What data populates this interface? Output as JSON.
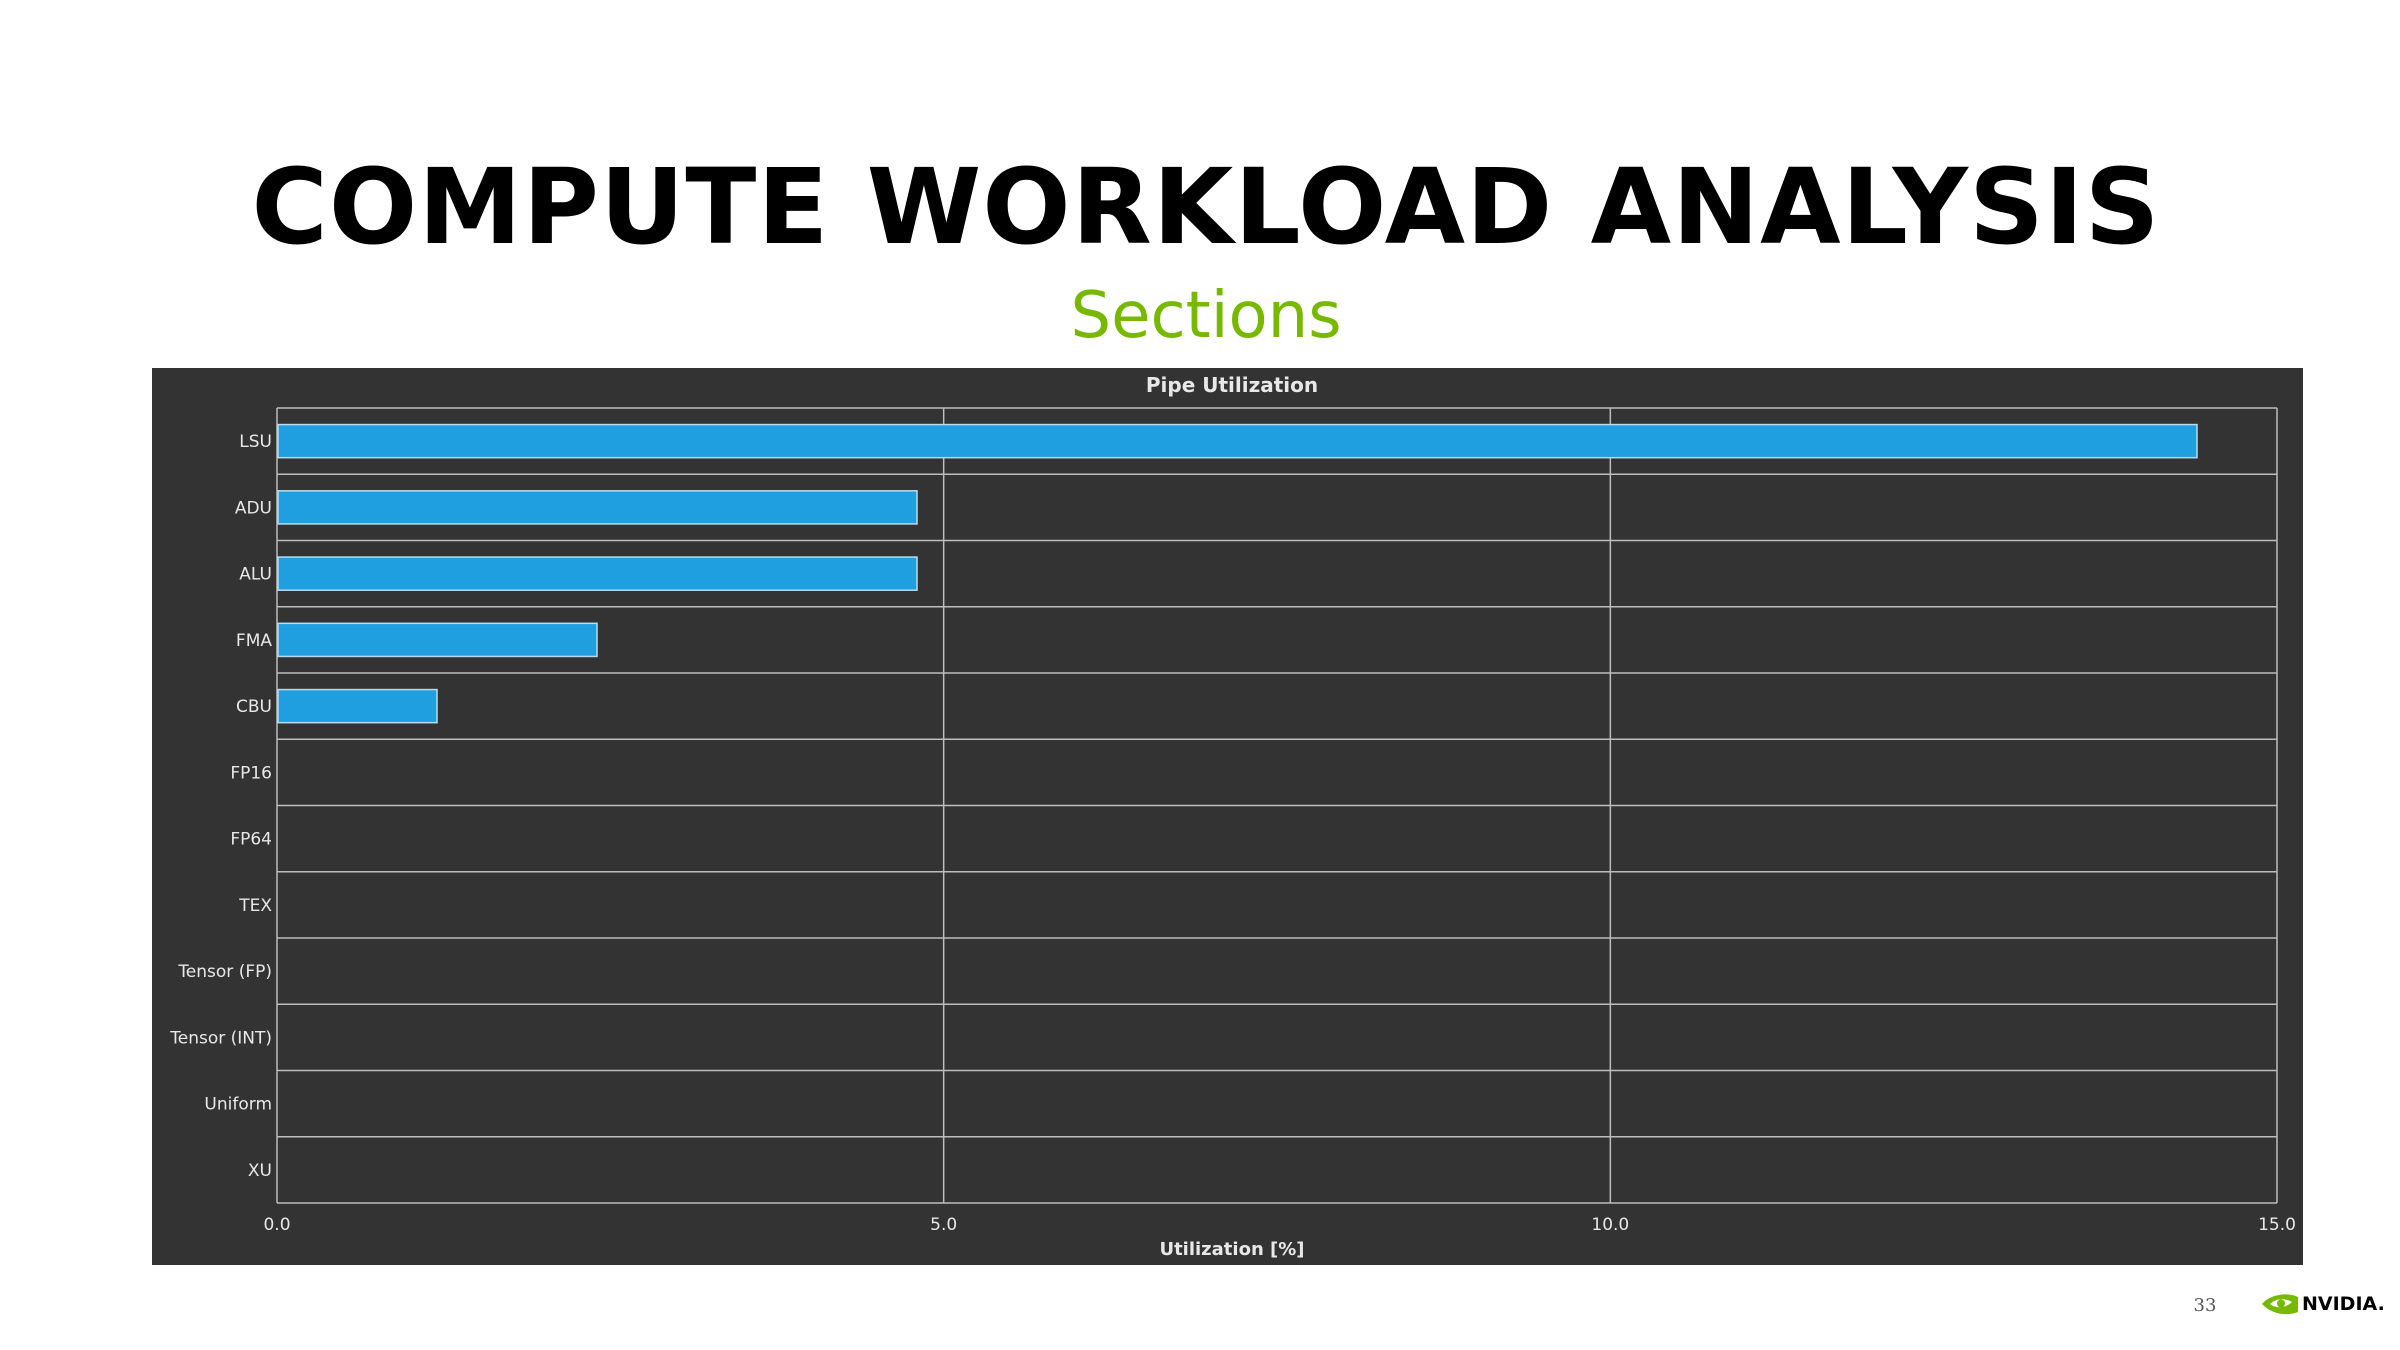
{
  "slide": {
    "title": "COMPUTE WORKLOAD ANALYSIS",
    "subtitle": "Sections",
    "page_number": "33",
    "brand": "NVIDIA."
  },
  "colors": {
    "accent_green": "#76b900",
    "panel_background": "#333333",
    "bar_fill": "#209fe0",
    "bar_outline": "#b7dcf0",
    "grid": "#bdbdbd",
    "text_light": "#e8e8e8"
  },
  "chart_data": {
    "type": "bar",
    "orientation": "horizontal",
    "title": "Pipe Utilization",
    "xlabel": "Utilization [%]",
    "ylabel": "",
    "categories": [
      "LSU",
      "ADU",
      "ALU",
      "FMA",
      "CBU",
      "FP16",
      "FP64",
      "TEX",
      "Tensor (FP)",
      "Tensor (INT)",
      "Uniform",
      "XU"
    ],
    "values": [
      14.4,
      4.8,
      4.8,
      2.4,
      1.2,
      0,
      0,
      0,
      0,
      0,
      0,
      0
    ],
    "xlim": [
      0,
      15
    ],
    "x_ticks": [
      "0.0",
      "5.0",
      "10.0",
      "15.0"
    ],
    "grid": true
  }
}
